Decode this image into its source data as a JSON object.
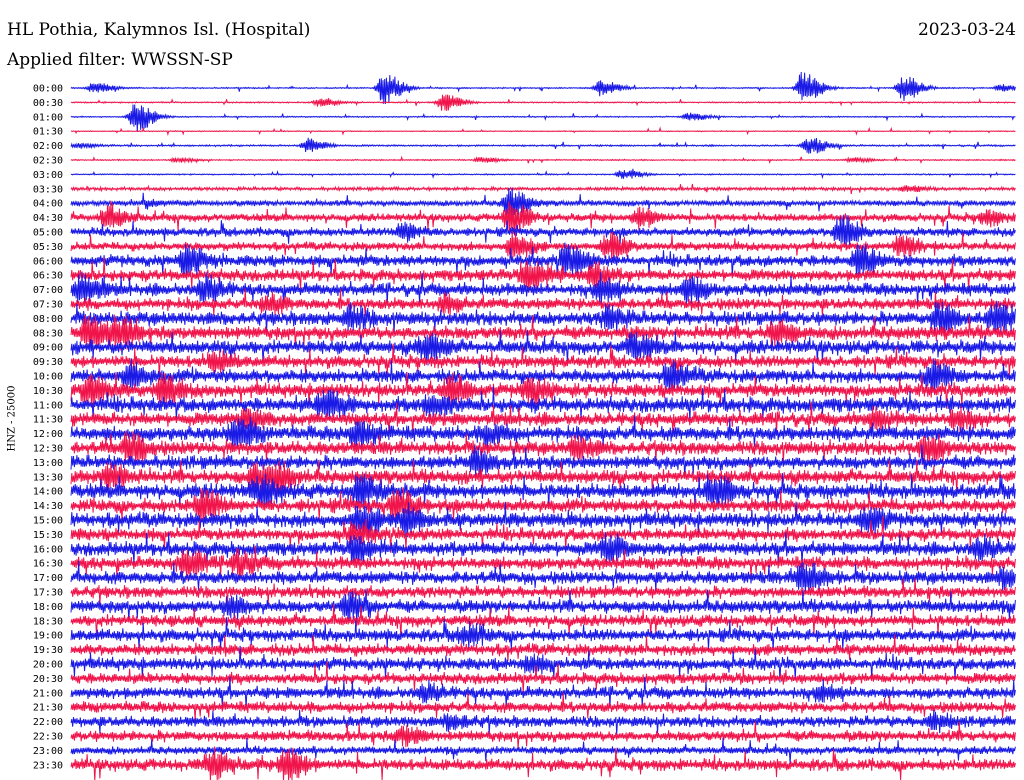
{
  "header": {
    "station": "HL Pothia, Kalymnos Isl. (Hospital)",
    "filter": "Applied filter: WWSSN-SP",
    "date": "2023-03-24",
    "channel": "HNZ - 25000"
  },
  "colors": {
    "blue": "#1a1ae6",
    "red": "#f0144b"
  },
  "chart_data": {
    "type": "line",
    "title": "HL Pothia, Kalymnos Isl. (Hospital)",
    "subtitle": "Applied filter: WWSSN-SP",
    "date": "2023-03-24",
    "ylabel": "HNZ - 25000",
    "x_unit": "minutes within each 30-minute row",
    "xlim": [
      0,
      30
    ],
    "rows": [
      {
        "label": "00:00",
        "color": "blue",
        "noise": 0.03,
        "events": [
          {
            "t": 0.7,
            "amp": 0.35
          },
          {
            "t": 9.9,
            "amp": 1.0
          },
          {
            "t": 16.8,
            "amp": 0.5
          },
          {
            "t": 23.2,
            "amp": 1.0
          },
          {
            "t": 26.4,
            "amp": 0.8
          },
          {
            "t": 29.5,
            "amp": 0.2
          }
        ]
      },
      {
        "label": "00:30",
        "color": "red",
        "noise": 0.03,
        "events": [
          {
            "t": 7.9,
            "amp": 0.3
          },
          {
            "t": 11.8,
            "amp": 0.55
          }
        ]
      },
      {
        "label": "01:00",
        "color": "blue",
        "noise": 0.03,
        "events": [
          {
            "t": 2.0,
            "amp": 1.0
          },
          {
            "t": 19.6,
            "amp": 0.25
          }
        ]
      },
      {
        "label": "01:30",
        "color": "red",
        "noise": 0.02,
        "events": []
      },
      {
        "label": "02:00",
        "color": "blue",
        "noise": 0.04,
        "events": [
          {
            "t": 7.5,
            "amp": 0.45
          },
          {
            "t": 23.4,
            "amp": 0.55
          },
          {
            "t": 0.2,
            "amp": 0.15
          }
        ]
      },
      {
        "label": "02:30",
        "color": "red",
        "noise": 0.03,
        "events": [
          {
            "t": 3.3,
            "amp": 0.15
          },
          {
            "t": 13.0,
            "amp": 0.15
          },
          {
            "t": 24.8,
            "amp": 0.15
          }
        ]
      },
      {
        "label": "03:00",
        "color": "blue",
        "noise": 0.03,
        "events": [
          {
            "t": 17.5,
            "amp": 0.3
          }
        ]
      },
      {
        "label": "03:30",
        "color": "red",
        "noise": 0.08,
        "events": [
          {
            "t": 26.5,
            "amp": 0.2
          }
        ]
      },
      {
        "label": "04:00",
        "color": "blue",
        "noise": 0.14,
        "events": [
          {
            "t": 13.9,
            "amp": 0.9
          },
          {
            "t": 2.4,
            "amp": 0.2
          }
        ]
      },
      {
        "label": "04:30",
        "color": "red",
        "noise": 0.2,
        "events": [
          {
            "t": 1.1,
            "amp": 0.7
          },
          {
            "t": 13.9,
            "amp": 1.0
          },
          {
            "t": 18.0,
            "amp": 0.6
          },
          {
            "t": 29.0,
            "amp": 0.4
          }
        ]
      },
      {
        "label": "05:00",
        "color": "blue",
        "noise": 0.22,
        "events": [
          {
            "t": 10.5,
            "amp": 0.5
          },
          {
            "t": 24.4,
            "amp": 1.0
          }
        ]
      },
      {
        "label": "05:30",
        "color": "red",
        "noise": 0.22,
        "events": [
          {
            "t": 14.0,
            "amp": 0.8
          },
          {
            "t": 17.0,
            "amp": 0.8
          },
          {
            "t": 26.3,
            "amp": 0.6
          }
        ]
      },
      {
        "label": "06:00",
        "color": "blue",
        "noise": 0.3,
        "events": [
          {
            "t": 3.6,
            "amp": 0.9
          },
          {
            "t": 15.7,
            "amp": 1.0
          },
          {
            "t": 25.0,
            "amp": 0.9
          }
        ]
      },
      {
        "label": "06:30",
        "color": "red",
        "noise": 0.3,
        "events": [
          {
            "t": 14.5,
            "amp": 1.0
          },
          {
            "t": 16.5,
            "amp": 0.7
          }
        ]
      },
      {
        "label": "07:00",
        "color": "blue",
        "noise": 0.32,
        "events": [
          {
            "t": 0.3,
            "amp": 0.9
          },
          {
            "t": 4.2,
            "amp": 0.8
          },
          {
            "t": 16.8,
            "amp": 0.8
          },
          {
            "t": 19.5,
            "amp": 0.8
          }
        ]
      },
      {
        "label": "07:30",
        "color": "red",
        "noise": 0.3,
        "events": [
          {
            "t": 6.2,
            "amp": 0.5
          },
          {
            "t": 11.8,
            "amp": 0.4
          }
        ]
      },
      {
        "label": "08:00",
        "color": "blue",
        "noise": 0.35,
        "events": [
          {
            "t": 8.8,
            "amp": 0.6
          },
          {
            "t": 17.0,
            "amp": 0.6
          },
          {
            "t": 27.5,
            "amp": 1.0
          },
          {
            "t": 29.3,
            "amp": 1.0
          }
        ]
      },
      {
        "label": "08:30",
        "color": "red",
        "noise": 0.35,
        "events": [
          {
            "t": 0.5,
            "amp": 1.0
          },
          {
            "t": 1.4,
            "amp": 1.0
          },
          {
            "t": 22.3,
            "amp": 0.7
          }
        ]
      },
      {
        "label": "09:00",
        "color": "blue",
        "noise": 0.35,
        "events": [
          {
            "t": 11.2,
            "amp": 0.9
          },
          {
            "t": 17.8,
            "amp": 0.7
          }
        ]
      },
      {
        "label": "09:30",
        "color": "red",
        "noise": 0.32,
        "events": [
          {
            "t": 4.5,
            "amp": 0.5
          }
        ]
      },
      {
        "label": "10:00",
        "color": "blue",
        "noise": 0.35,
        "events": [
          {
            "t": 1.8,
            "amp": 0.7
          },
          {
            "t": 19.0,
            "amp": 0.8
          },
          {
            "t": 27.3,
            "amp": 0.8
          }
        ]
      },
      {
        "label": "10:30",
        "color": "red",
        "noise": 0.35,
        "events": [
          {
            "t": 0.5,
            "amp": 0.9
          },
          {
            "t": 2.9,
            "amp": 0.8
          },
          {
            "t": 12.0,
            "amp": 0.9
          },
          {
            "t": 14.5,
            "amp": 0.7
          }
        ]
      },
      {
        "label": "11:00",
        "color": "blue",
        "noise": 0.38,
        "events": [
          {
            "t": 8.0,
            "amp": 1.0
          },
          {
            "t": 11.4,
            "amp": 0.7
          }
        ]
      },
      {
        "label": "11:30",
        "color": "red",
        "noise": 0.35,
        "events": [
          {
            "t": 5.5,
            "amp": 0.6
          },
          {
            "t": 25.4,
            "amp": 0.5
          },
          {
            "t": 28.0,
            "amp": 0.6
          }
        ]
      },
      {
        "label": "12:00",
        "color": "blue",
        "noise": 0.38,
        "events": [
          {
            "t": 5.2,
            "amp": 1.0
          },
          {
            "t": 9.0,
            "amp": 0.8
          },
          {
            "t": 13.2,
            "amp": 0.6
          }
        ]
      },
      {
        "label": "12:30",
        "color": "red",
        "noise": 0.35,
        "events": [
          {
            "t": 1.8,
            "amp": 1.0
          },
          {
            "t": 16.0,
            "amp": 0.6
          },
          {
            "t": 27.1,
            "amp": 0.9
          }
        ]
      },
      {
        "label": "13:00",
        "color": "blue",
        "noise": 0.35,
        "events": [
          {
            "t": 12.8,
            "amp": 0.6
          }
        ]
      },
      {
        "label": "13:30",
        "color": "red",
        "noise": 0.35,
        "events": [
          {
            "t": 1.2,
            "amp": 0.8
          },
          {
            "t": 5.8,
            "amp": 0.8
          },
          {
            "t": 6.5,
            "amp": 0.7
          }
        ]
      },
      {
        "label": "14:00",
        "color": "blue",
        "noise": 0.38,
        "events": [
          {
            "t": 5.9,
            "amp": 0.9
          },
          {
            "t": 9.1,
            "amp": 1.0
          },
          {
            "t": 20.3,
            "amp": 1.0
          }
        ]
      },
      {
        "label": "14:30",
        "color": "red",
        "noise": 0.35,
        "events": [
          {
            "t": 4.1,
            "amp": 1.0
          },
          {
            "t": 10.3,
            "amp": 0.9
          }
        ]
      },
      {
        "label": "15:00",
        "color": "blue",
        "noise": 0.38,
        "events": [
          {
            "t": 9.1,
            "amp": 1.0
          },
          {
            "t": 10.6,
            "amp": 0.8
          },
          {
            "t": 25.2,
            "amp": 0.7
          }
        ]
      },
      {
        "label": "15:30",
        "color": "red",
        "noise": 0.32,
        "events": [
          {
            "t": 8.9,
            "amp": 0.5
          }
        ]
      },
      {
        "label": "16:00",
        "color": "blue",
        "noise": 0.35,
        "events": [
          {
            "t": 9.0,
            "amp": 0.7
          },
          {
            "t": 17.0,
            "amp": 0.8
          },
          {
            "t": 28.8,
            "amp": 0.6
          }
        ]
      },
      {
        "label": "16:30",
        "color": "red",
        "noise": 0.33,
        "events": [
          {
            "t": 3.6,
            "amp": 0.8
          },
          {
            "t": 5.2,
            "amp": 0.7
          }
        ]
      },
      {
        "label": "17:00",
        "color": "blue",
        "noise": 0.33,
        "events": [
          {
            "t": 23.2,
            "amp": 1.0
          },
          {
            "t": 29.6,
            "amp": 0.5
          }
        ]
      },
      {
        "label": "17:30",
        "color": "red",
        "noise": 0.3,
        "events": []
      },
      {
        "label": "18:00",
        "color": "blue",
        "noise": 0.33,
        "events": [
          {
            "t": 5.0,
            "amp": 0.6
          },
          {
            "t": 8.8,
            "amp": 0.8
          }
        ]
      },
      {
        "label": "18:30",
        "color": "red",
        "noise": 0.3,
        "events": []
      },
      {
        "label": "19:00",
        "color": "blue",
        "noise": 0.32,
        "events": [
          {
            "t": 12.5,
            "amp": 0.6
          }
        ]
      },
      {
        "label": "19:30",
        "color": "red",
        "noise": 0.3,
        "events": []
      },
      {
        "label": "20:00",
        "color": "blue",
        "noise": 0.32,
        "events": [
          {
            "t": 14.5,
            "amp": 0.4
          }
        ]
      },
      {
        "label": "20:30",
        "color": "red",
        "noise": 0.28,
        "events": []
      },
      {
        "label": "21:00",
        "color": "blue",
        "noise": 0.3,
        "events": [
          {
            "t": 11.2,
            "amp": 0.5
          },
          {
            "t": 23.8,
            "amp": 0.5
          }
        ]
      },
      {
        "label": "21:30",
        "color": "red",
        "noise": 0.28,
        "events": []
      },
      {
        "label": "22:00",
        "color": "blue",
        "noise": 0.28,
        "events": [
          {
            "t": 12.0,
            "amp": 0.4
          },
          {
            "t": 27.3,
            "amp": 0.4
          }
        ]
      },
      {
        "label": "22:30",
        "color": "red",
        "noise": 0.28,
        "events": [
          {
            "t": 10.5,
            "amp": 0.5
          }
        ]
      },
      {
        "label": "23:00",
        "color": "blue",
        "noise": 0.2,
        "events": []
      },
      {
        "label": "23:30",
        "color": "red",
        "noise": 0.3,
        "events": [
          {
            "t": 4.4,
            "amp": 0.9
          },
          {
            "t": 6.8,
            "amp": 1.0
          }
        ]
      }
    ]
  }
}
